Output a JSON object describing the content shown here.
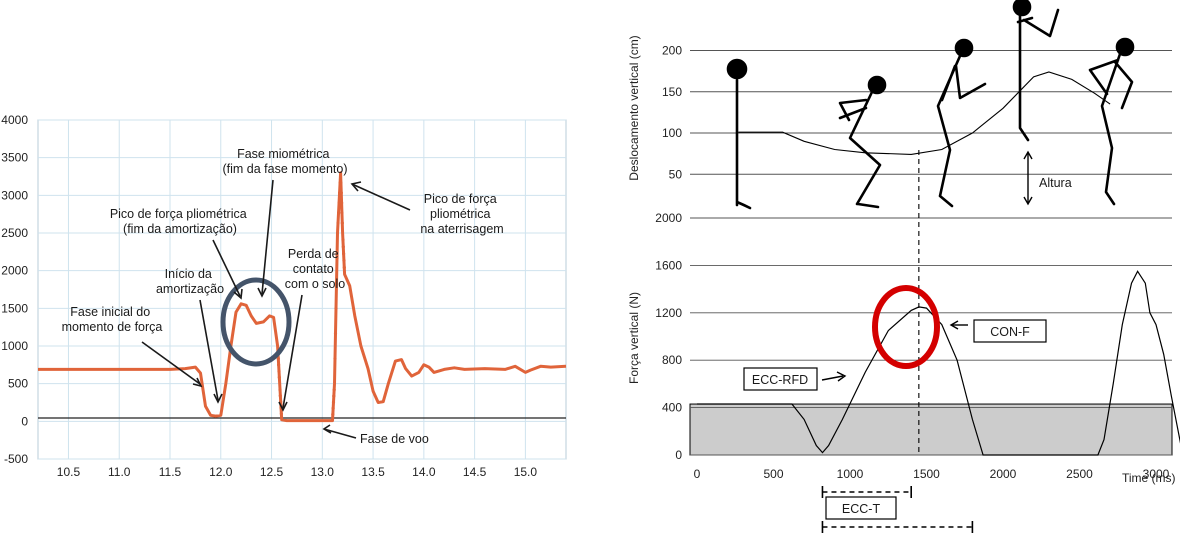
{
  "chart_data": [
    {
      "type": "line",
      "title": "",
      "xlabel": "",
      "ylabel": "",
      "xlim": [
        10.2,
        15.4
      ],
      "ylim": [
        -500,
        4000
      ],
      "x_ticks": [
        "10.5",
        "11.0",
        "11.5",
        "12.0",
        "12.5",
        "13.0",
        "13.5",
        "14.0",
        "14.5",
        "15.0"
      ],
      "y_ticks": [
        "-500",
        "0",
        "500",
        "1000",
        "1500",
        "2000",
        "2500",
        "3000",
        "3500",
        "4000"
      ],
      "grid": true,
      "colors": {
        "series": "#e0643a",
        "circle": "#44546a",
        "grid": "#cfe3ee"
      },
      "series": [
        {
          "values": [
            [
              10.2,
              690
            ],
            [
              11.2,
              690
            ],
            [
              11.5,
              690
            ],
            [
              11.65,
              700
            ],
            [
              11.75,
              720
            ],
            [
              11.8,
              640
            ],
            [
              11.85,
              200
            ],
            [
              11.9,
              80
            ],
            [
              11.95,
              70
            ],
            [
              12.0,
              80
            ],
            [
              12.05,
              500
            ],
            [
              12.1,
              1000
            ],
            [
              12.15,
              1450
            ],
            [
              12.2,
              1560
            ],
            [
              12.25,
              1540
            ],
            [
              12.3,
              1400
            ],
            [
              12.35,
              1300
            ],
            [
              12.42,
              1320
            ],
            [
              12.48,
              1400
            ],
            [
              12.52,
              1380
            ],
            [
              12.56,
              1000
            ],
            [
              12.58,
              500
            ],
            [
              12.6,
              20
            ],
            [
              12.65,
              10
            ],
            [
              13.1,
              10
            ],
            [
              13.12,
              500
            ],
            [
              13.15,
              2500
            ],
            [
              13.18,
              3300
            ],
            [
              13.2,
              2500
            ],
            [
              13.22,
              1950
            ],
            [
              13.27,
              1800
            ],
            [
              13.32,
              1400
            ],
            [
              13.38,
              1000
            ],
            [
              13.45,
              700
            ],
            [
              13.5,
              400
            ],
            [
              13.55,
              250
            ],
            [
              13.6,
              260
            ],
            [
              13.65,
              500
            ],
            [
              13.72,
              800
            ],
            [
              13.78,
              820
            ],
            [
              13.82,
              700
            ],
            [
              13.88,
              600
            ],
            [
              13.95,
              650
            ],
            [
              14.0,
              750
            ],
            [
              14.05,
              720
            ],
            [
              14.1,
              650
            ],
            [
              14.2,
              690
            ],
            [
              14.3,
              710
            ],
            [
              14.4,
              690
            ],
            [
              14.6,
              700
            ],
            [
              14.8,
              690
            ],
            [
              14.9,
              730
            ],
            [
              15.0,
              650
            ],
            [
              15.05,
              680
            ],
            [
              15.15,
              730
            ],
            [
              15.25,
              720
            ],
            [
              15.4,
              730
            ]
          ]
        }
      ],
      "annotations": [
        {
          "lines": [
            "Fase inicial do",
            "momento de força"
          ]
        },
        {
          "lines": [
            "Início da",
            "amortização"
          ]
        },
        {
          "lines": [
            "Pico de força pliométrica",
            "(fim da amortização)"
          ]
        },
        {
          "lines": [
            "Fase miométrica",
            "(fim da fase momento)"
          ]
        },
        {
          "lines": [
            "Perda de",
            "contato",
            "com o solo"
          ]
        },
        {
          "lines": [
            "Pico de força",
            "pliométrica",
            "na aterrisagem"
          ]
        },
        {
          "lines": [
            "Fase de voo"
          ]
        }
      ]
    },
    {
      "type": "line",
      "title": "",
      "xlabel": "Time (ms)",
      "ylabel": "Deslocamento vertical (cm)",
      "xlim": [
        0,
        3200
      ],
      "ylim": [
        0,
        220
      ],
      "x_ticks": [
        "0",
        "500",
        "1000",
        "1500",
        "2000",
        "2500",
        "3000"
      ],
      "y_ticks": [
        "50",
        "100",
        "150",
        "200"
      ],
      "grid": true,
      "series": [
        {
          "values": [
            [
              270,
              101
            ],
            [
              560,
              101
            ],
            [
              700,
              90
            ],
            [
              900,
              80
            ],
            [
              1100,
              76
            ],
            [
              1400,
              74
            ],
            [
              1600,
              80
            ],
            [
              1800,
              100
            ],
            [
              2000,
              130
            ],
            [
              2200,
              168
            ],
            [
              2300,
              174
            ],
            [
              2450,
              165
            ],
            [
              2600,
              148
            ],
            [
              2700,
              135
            ]
          ]
        }
      ],
      "annotations": [
        {
          "text": "Altura"
        }
      ]
    },
    {
      "type": "line",
      "title": "",
      "xlabel": "Time (ms)",
      "ylabel": "Força vertical (N)",
      "xlim": [
        0,
        3200
      ],
      "ylim": [
        0,
        2000
      ],
      "x_ticks": [
        "0",
        "500",
        "1000",
        "1500",
        "2000",
        "2500",
        "3000"
      ],
      "y_ticks": [
        "0",
        "400",
        "800",
        "1200",
        "1600",
        "2000"
      ],
      "grid": true,
      "body_weight_N": 430,
      "colors": {
        "circle": "#d40000",
        "fill": "#cccccc"
      },
      "series": [
        {
          "values": [
            [
              0,
              430
            ],
            [
              620,
              430
            ],
            [
              700,
              300
            ],
            [
              780,
              80
            ],
            [
              820,
              20
            ],
            [
              860,
              80
            ],
            [
              950,
              300
            ],
            [
              1100,
              700
            ],
            [
              1250,
              1050
            ],
            [
              1400,
              1220
            ],
            [
              1450,
              1250
            ],
            [
              1500,
              1240
            ],
            [
              1600,
              1100
            ],
            [
              1700,
              800
            ],
            [
              1800,
              300
            ],
            [
              1870,
              0
            ],
            [
              2620,
              0
            ],
            [
              2660,
              130
            ],
            [
              2720,
              600
            ],
            [
              2780,
              1100
            ],
            [
              2840,
              1450
            ],
            [
              2880,
              1550
            ],
            [
              2930,
              1450
            ],
            [
              2960,
              1200
            ],
            [
              3000,
              1100
            ],
            [
              3050,
              850
            ],
            [
              3100,
              500
            ],
            [
              3160,
              100
            ],
            [
              3200,
              0
            ]
          ]
        }
      ],
      "markers": {
        "peak_time_ms": 1450
      },
      "annotations": [
        {
          "text": "ECC-RFD"
        },
        {
          "text": "CON-F"
        },
        {
          "text": "ECC-T"
        }
      ],
      "intervals": [
        {
          "label": "ECC-T",
          "from_ms": 820,
          "to_ms": 1400
        },
        {
          "from_ms": 820,
          "to_ms": 1800
        }
      ]
    }
  ]
}
